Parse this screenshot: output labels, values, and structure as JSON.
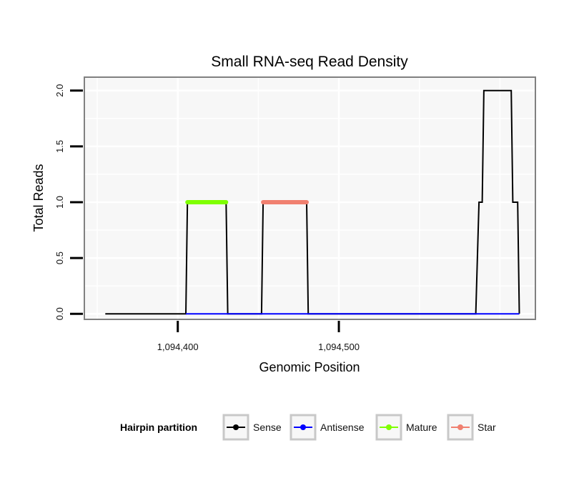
{
  "chart_data": {
    "type": "line",
    "title": "Small RNA-seq Read Density",
    "xlabel": "Genomic Position",
    "ylabel": "Total Reads",
    "xlim": [
      1094342,
      1094622
    ],
    "ylim": [
      -0.05,
      2.12
    ],
    "x_ticks": [
      {
        "value": 1094400,
        "label": "1,094,400"
      },
      {
        "value": 1094500,
        "label": "1,094,500"
      }
    ],
    "y_ticks": [
      {
        "value": 0,
        "label": "0.0"
      },
      {
        "value": 0.5,
        "label": "0.5"
      },
      {
        "value": 1,
        "label": "1.0"
      },
      {
        "value": 1.5,
        "label": "1.5"
      },
      {
        "value": 2,
        "label": "2.0"
      }
    ],
    "series": [
      {
        "name": "Sense",
        "color": "#000000",
        "style": "line",
        "points": [
          [
            1094355,
            0
          ],
          [
            1094405,
            0
          ],
          [
            1094406,
            1
          ],
          [
            1094430,
            1
          ],
          [
            1094431,
            0
          ],
          [
            1094452,
            0
          ],
          [
            1094453,
            1
          ],
          [
            1094480,
            1
          ],
          [
            1094481,
            0
          ],
          [
            1094585,
            0
          ],
          [
            1094587,
            1
          ],
          [
            1094589,
            1
          ],
          [
            1094590,
            2
          ],
          [
            1094607,
            2
          ],
          [
            1094608,
            1
          ],
          [
            1094611,
            1
          ],
          [
            1094612,
            0
          ]
        ]
      },
      {
        "name": "Antisense",
        "color": "#0000ff",
        "style": "line",
        "points": [
          [
            1094405,
            0
          ],
          [
            1094431,
            0
          ],
          [
            1094452,
            0
          ],
          [
            1094481,
            0
          ],
          [
            1094585,
            0
          ],
          [
            1094612,
            0
          ]
        ]
      },
      {
        "name": "Mature",
        "color": "#7fff00",
        "style": "thick",
        "points": [
          [
            1094406,
            1
          ],
          [
            1094430,
            1
          ]
        ]
      },
      {
        "name": "Star",
        "color": "#f08070",
        "style": "thick",
        "points": [
          [
            1094453,
            1
          ],
          [
            1094480,
            1
          ]
        ]
      }
    ],
    "legend": {
      "title": "Hairpin partition",
      "position": "bottom",
      "entries": [
        {
          "label": "Sense",
          "color": "#000000"
        },
        {
          "label": "Antisense",
          "color": "#0000ff"
        },
        {
          "label": "Mature",
          "color": "#7fff00"
        },
        {
          "label": "Star",
          "color": "#f08070"
        }
      ]
    },
    "grid": true
  }
}
